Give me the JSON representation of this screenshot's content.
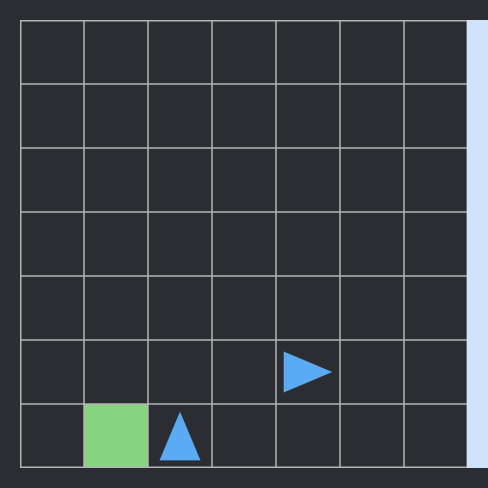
{
  "grid": {
    "rows": 7,
    "cols": 7,
    "background_color": "#2a2e33",
    "line_color": "#b4b4b4"
  },
  "side_panel": {
    "color": "#cfe3fb"
  },
  "goal": {
    "row": 6,
    "col": 1,
    "color": "#86d47f",
    "shape": "square"
  },
  "agents": [
    {
      "id": "agent-1",
      "row": 6,
      "col": 2,
      "direction": "up",
      "color": "#5aabf3",
      "shape": "triangle-up-icon"
    },
    {
      "id": "agent-2",
      "row": 5,
      "col": 4,
      "direction": "right",
      "color": "#5aabf3",
      "shape": "triangle-right-icon"
    }
  ]
}
